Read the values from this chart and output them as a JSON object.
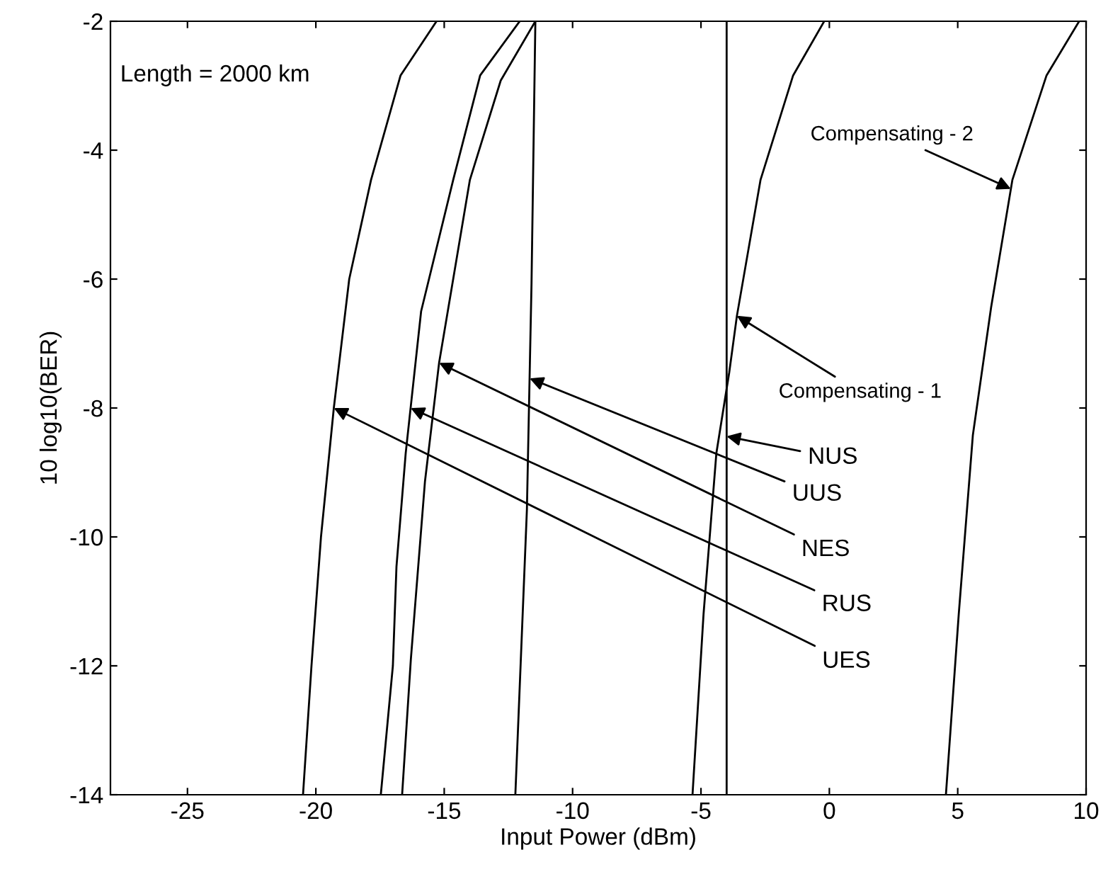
{
  "chart_data": {
    "type": "line",
    "xlabel": "Input Power (dBm)",
    "ylabel": "10 log10(BER)",
    "xlim": [
      -28,
      10
    ],
    "xticks": [
      -25,
      -20,
      -15,
      -10,
      -5,
      0,
      5,
      10
    ],
    "ylim": [
      -14,
      -2
    ],
    "yticks": [
      -14,
      -12,
      -10,
      -8,
      -6,
      -4,
      -2
    ],
    "grid": false,
    "marker": "none",
    "line_style": "solid",
    "series": [
      {
        "color": "#000000",
        "x": [
          -20.5,
          -20.17,
          -19.8,
          -19.3,
          -18.7,
          -17.85,
          -16.7,
          -15.3
        ],
        "values": [
          -14,
          -12,
          -10,
          -8,
          -6,
          -4.46,
          -2.84,
          -2
        ]
      },
      {
        "color": "#000000",
        "x": [
          -17.47,
          -17.0,
          -16.86,
          -16.5,
          -15.9,
          -14.65,
          -13.6,
          -12.06
        ],
        "values": [
          -14,
          -12,
          -10.46,
          -8.7,
          -6.5,
          -4.46,
          -2.84,
          -2
        ]
      },
      {
        "color": "#000000",
        "x": [
          -16.64,
          -16.3,
          -15.75,
          -15.2,
          -14.0,
          -12.8,
          -11.45
        ],
        "values": [
          -14,
          -11.9,
          -9.14,
          -7.3,
          -4.46,
          -2.92,
          -2
        ]
      },
      {
        "color": "#000000",
        "x": [
          -12.23,
          -11.78,
          -11.6,
          -11.45
        ],
        "values": [
          -14,
          -9.58,
          -6.07,
          -2
        ]
      },
      {
        "color": "#000000",
        "x": [
          -4.0,
          -4.0
        ],
        "values": [
          -14,
          -2
        ]
      },
      {
        "color": "#000000",
        "x": [
          -5.33,
          -4.9,
          -4.4,
          -3.9,
          -3.6,
          -2.68,
          -1.41,
          -0.2
        ],
        "values": [
          -14,
          -11.2,
          -8.7,
          -7.45,
          -6.57,
          -4.46,
          -2.84,
          -2
        ]
      },
      {
        "color": "#000000",
        "x": [
          4.54,
          5.04,
          5.59,
          6.3,
          7.13,
          8.46,
          9.73
        ],
        "values": [
          -14,
          -11.2,
          -8.42,
          -6.44,
          -4.46,
          -2.84,
          -2
        ]
      }
    ],
    "annotations": [
      "Length = 2000 km",
      {
        "text": "UES",
        "x": -19.3,
        "y": -8
      },
      {
        "text": "RUS",
        "x": -16.31,
        "y": -8
      },
      {
        "text": "NES",
        "x": -15.2,
        "y": -7.3
      },
      {
        "text": "UUS",
        "x": -11.675,
        "y": -7.54
      },
      {
        "text": "NUS",
        "x": -4.0,
        "y": -8.44
      },
      {
        "text": "Compensating - 1",
        "x": -3.6,
        "y": -6.57
      },
      {
        "text": "Compensating - 2",
        "x": 7.07,
        "y": -4.6
      }
    ]
  }
}
